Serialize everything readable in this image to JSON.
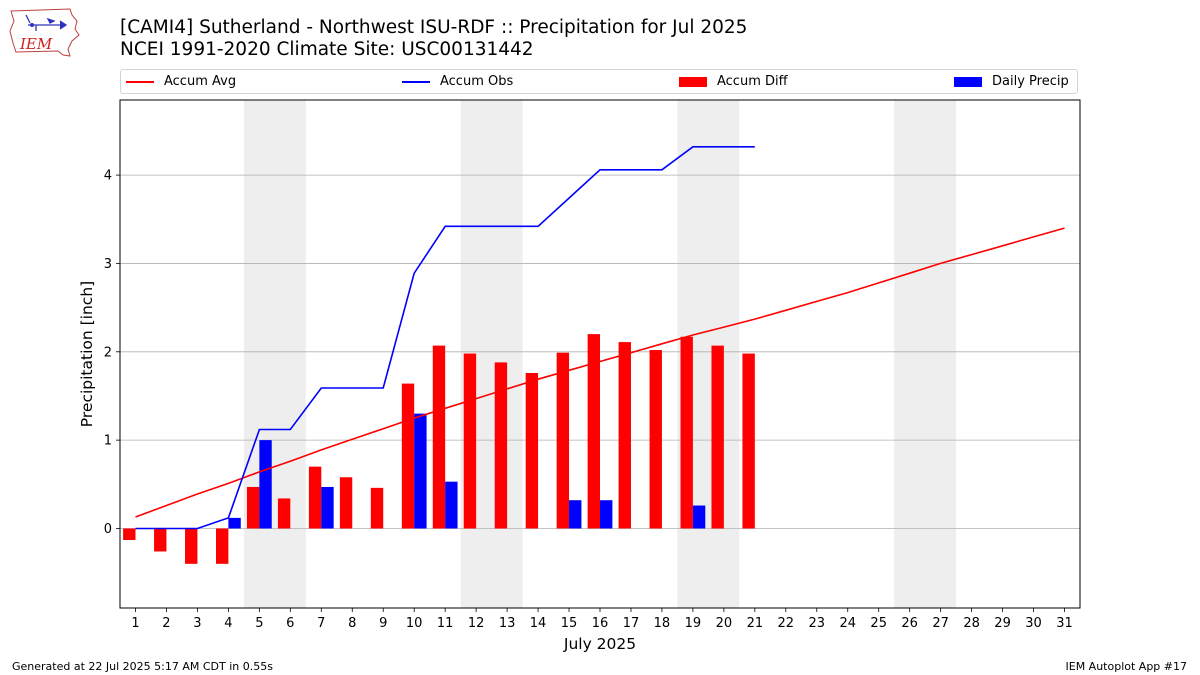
{
  "header": {
    "title_line1": "[CAMI4] Sutherland - Northwest ISU-RDF :: Precipitation for Jul 2025",
    "title_line2": "NCEI 1991-2020 Climate Site: USC00131442",
    "logo_text": "IEM"
  },
  "legend": {
    "accum_avg": "Accum Avg",
    "accum_obs": "Accum Obs",
    "accum_diff": "Accum Diff",
    "daily_precip": "Daily Precip"
  },
  "footer": {
    "generated": "Generated at 22 Jul 2025 5:17 AM CDT in 0.55s",
    "app": "IEM Autoplot App #17"
  },
  "colors": {
    "accum_avg": "#ff0000",
    "accum_obs": "#0000ff",
    "accum_diff": "#ff0000",
    "daily_precip": "#0000ff",
    "weekend_shading": "#eeeeee",
    "grid": "#b0b0b0"
  },
  "chart_data": {
    "type": "bar",
    "xlabel": "July 2025",
    "ylabel": "Precipitation [inch]",
    "xlim": [
      0.5,
      31.5
    ],
    "ylim": [
      -0.9,
      4.85
    ],
    "yticks": [
      0,
      1,
      2,
      3,
      4
    ],
    "grid": "horizontal",
    "legend_position": "top",
    "days": [
      1,
      2,
      3,
      4,
      5,
      6,
      7,
      8,
      9,
      10,
      11,
      12,
      13,
      14,
      15,
      16,
      17,
      18,
      19,
      20,
      21,
      22,
      23,
      24,
      25,
      26,
      27,
      28,
      29,
      30,
      31
    ],
    "weekend_shading": [
      [
        5,
        6
      ],
      [
        12,
        13
      ],
      [
        19,
        20
      ],
      [
        26,
        27
      ]
    ],
    "series": [
      {
        "name": "Accum Avg",
        "kind": "line",
        "values": [
          0.13,
          0.26,
          0.39,
          0.51,
          0.64,
          0.76,
          0.89,
          1.01,
          1.13,
          1.25,
          1.36,
          1.47,
          1.58,
          1.69,
          1.79,
          1.89,
          1.99,
          2.09,
          2.19,
          2.28,
          2.37,
          2.47,
          2.57,
          2.67,
          2.78,
          2.89,
          3.0,
          3.1,
          3.2,
          3.3,
          3.4
        ]
      },
      {
        "name": "Accum Obs",
        "kind": "line",
        "values": [
          0,
          0,
          0,
          0.12,
          1.12,
          1.12,
          1.59,
          1.59,
          1.59,
          2.89,
          3.42,
          3.42,
          3.42,
          3.42,
          3.74,
          4.06,
          4.06,
          4.06,
          4.32,
          4.32,
          4.32
        ]
      },
      {
        "name": "Accum Diff",
        "kind": "bar",
        "values": [
          -0.13,
          -0.26,
          -0.4,
          -0.4,
          0.47,
          0.34,
          0.7,
          0.58,
          0.46,
          1.64,
          2.07,
          1.98,
          1.88,
          1.76,
          1.99,
          2.2,
          2.11,
          2.02,
          2.17,
          2.07,
          1.98
        ]
      },
      {
        "name": "Daily Precip",
        "kind": "bar",
        "values": [
          0,
          0,
          0,
          0.12,
          1.0,
          0,
          0.47,
          0,
          0,
          1.3,
          0.53,
          0,
          0,
          0,
          0.32,
          0.32,
          0,
          0,
          0.26,
          0,
          0
        ]
      }
    ]
  }
}
